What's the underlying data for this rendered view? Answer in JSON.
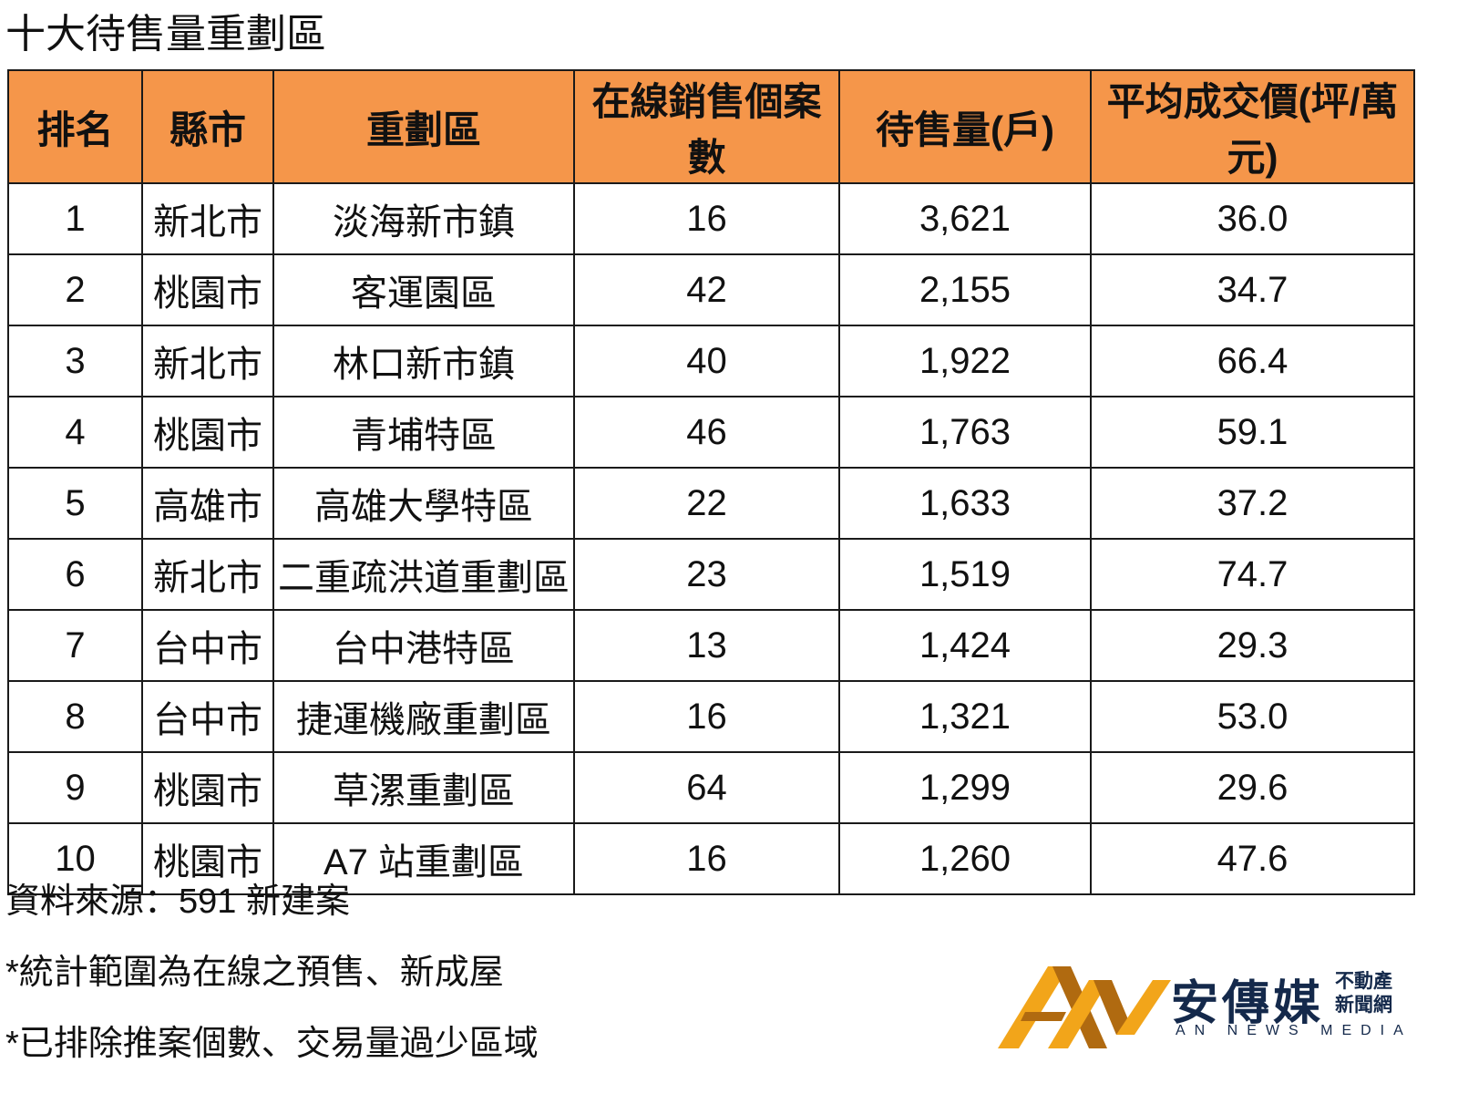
{
  "title": "十大待售量重劃區",
  "table": {
    "headers": [
      "排名",
      "縣市",
      "重劃區",
      "在線銷售個案數",
      "待售量(戶)",
      "平均成交價(坪/萬元)"
    ],
    "header_color": "#f5964a",
    "rows": [
      [
        "1",
        "新北市",
        "淡海新市鎮",
        "16",
        "3,621",
        "36.0"
      ],
      [
        "2",
        "桃園市",
        "客運園區",
        "42",
        "2,155",
        "34.7"
      ],
      [
        "3",
        "新北市",
        "林口新市鎮",
        "40",
        "1,922",
        "66.4"
      ],
      [
        "4",
        "桃園市",
        "青埔特區",
        "46",
        "1,763",
        "59.1"
      ],
      [
        "5",
        "高雄市",
        "高雄大學特區",
        "22",
        "1,633",
        "37.2"
      ],
      [
        "6",
        "新北市",
        "二重疏洪道重劃區",
        "23",
        "1,519",
        "74.7"
      ],
      [
        "7",
        "台中市",
        "台中港特區",
        "13",
        "1,424",
        "29.3"
      ],
      [
        "8",
        "台中市",
        "捷運機廠重劃區",
        "16",
        "1,321",
        "53.0"
      ],
      [
        "9",
        "桃園市",
        "草漯重劃區",
        "64",
        "1,299",
        "29.6"
      ],
      [
        "10",
        "桃園市",
        "A7 站重劃區",
        "16",
        "1,260",
        "47.6"
      ]
    ]
  },
  "notes": [
    "資料來源：591 新建案",
    "*統計範圍為在線之預售、新成屋",
    "*已排除推案個數、交易量過少區域"
  ],
  "logo": {
    "brand": "安傳媒",
    "sub_line1": "不動產",
    "sub_line2": "新聞網",
    "english": "AN NEWS MEDIA",
    "colors": {
      "gold": "#f2a51a",
      "brown": "#b06a10",
      "navy": "#14294b"
    }
  }
}
